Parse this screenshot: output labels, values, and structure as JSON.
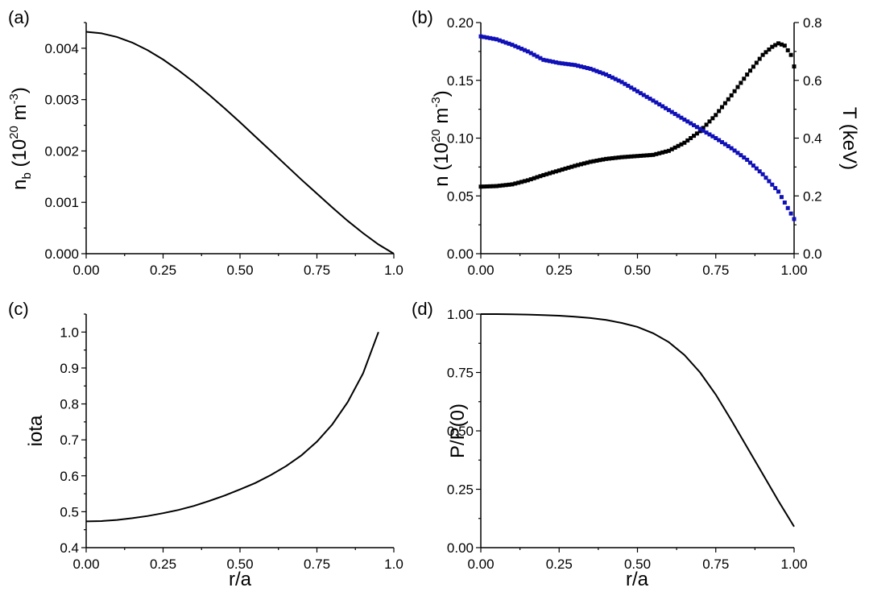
{
  "chart_data": [
    {
      "panel": "(a)",
      "type": "line",
      "xlabel": "",
      "ylabel": "n_b (10^20 m^-3)",
      "ylabel_parts": {
        "base": "n",
        "sub": "b",
        "open": " (10",
        "sup1": "20",
        "mid": " m",
        "sup2": "-3",
        "close": ")"
      },
      "xlim": [
        0,
        1.0
      ],
      "ylim": [
        0,
        0.0045
      ],
      "xticks": [
        "0.00",
        "0.25",
        "0.50",
        "0.75",
        "1.0"
      ],
      "yticks": [
        "0.000",
        "0.001",
        "0.002",
        "0.003",
        "0.004"
      ],
      "series": [
        {
          "color": "#000000",
          "x": [
            0,
            0.05,
            0.1,
            0.15,
            0.2,
            0.25,
            0.3,
            0.35,
            0.4,
            0.45,
            0.5,
            0.55,
            0.6,
            0.65,
            0.7,
            0.75,
            0.8,
            0.85,
            0.9,
            0.95,
            1.0
          ],
          "y": [
            0.00432,
            0.00429,
            0.00422,
            0.00411,
            0.00396,
            0.00378,
            0.00357,
            0.00334,
            0.00309,
            0.00283,
            0.00256,
            0.00228,
            0.002,
            0.00172,
            0.00144,
            0.00117,
            0.0009,
            0.00064,
            0.0004,
            0.00018,
            0.0
          ]
        }
      ]
    },
    {
      "panel": "(b)",
      "type": "scatter",
      "xlabel": "",
      "ylabel": "n (10^20 m^-3)",
      "ylabel_parts": {
        "base": "n (10",
        "sup1": "20",
        "mid": " m",
        "sup2": "-3",
        "close": ")"
      },
      "y2label": "T (keV)",
      "xlim": [
        0,
        1.0
      ],
      "ylim": [
        0,
        0.2
      ],
      "y2lim": [
        0,
        0.8
      ],
      "xticks": [
        "0.00",
        "0.25",
        "0.50",
        "0.75",
        "1.00"
      ],
      "yticks": [
        "0.00",
        "0.05",
        "0.10",
        "0.15",
        "0.20"
      ],
      "y2ticks": [
        "0.0",
        "0.2",
        "0.4",
        "0.6",
        "0.8"
      ],
      "series": [
        {
          "name": "n",
          "axis": "left",
          "color": "#000000",
          "x": [
            0,
            0.05,
            0.1,
            0.15,
            0.2,
            0.25,
            0.3,
            0.35,
            0.4,
            0.45,
            0.5,
            0.55,
            0.6,
            0.65,
            0.7,
            0.75,
            0.8,
            0.85,
            0.9,
            0.93,
            0.95,
            0.97,
            0.99,
            1.0
          ],
          "y": [
            0.058,
            0.0585,
            0.06,
            0.0635,
            0.068,
            0.072,
            0.076,
            0.0795,
            0.082,
            0.0835,
            0.0845,
            0.0855,
            0.089,
            0.096,
            0.106,
            0.12,
            0.137,
            0.155,
            0.172,
            0.179,
            0.182,
            0.18,
            0.172,
            0.162
          ]
        },
        {
          "name": "T",
          "axis": "right",
          "color": "#1010b8",
          "x": [
            0,
            0.05,
            0.1,
            0.15,
            0.2,
            0.25,
            0.3,
            0.35,
            0.4,
            0.45,
            0.5,
            0.55,
            0.6,
            0.65,
            0.7,
            0.75,
            0.8,
            0.85,
            0.9,
            0.95,
            1.0
          ],
          "y": [
            0.752,
            0.742,
            0.723,
            0.7,
            0.671,
            0.66,
            0.653,
            0.64,
            0.62,
            0.594,
            0.562,
            0.53,
            0.497,
            0.464,
            0.432,
            0.4,
            0.365,
            0.325,
            0.275,
            0.215,
            0.12
          ]
        }
      ]
    },
    {
      "panel": "(c)",
      "type": "line",
      "xlabel": "r/a",
      "ylabel": "iota",
      "xlim": [
        0,
        1.0
      ],
      "ylim": [
        0.4,
        1.05
      ],
      "xticks": [
        "0.00",
        "0.25",
        "0.50",
        "0.75",
        "1.0"
      ],
      "yticks": [
        "0.4",
        "0.5",
        "0.6",
        "0.7",
        "0.8",
        "0.9",
        "1.0"
      ],
      "series": [
        {
          "color": "#000000",
          "x": [
            0,
            0.05,
            0.1,
            0.15,
            0.2,
            0.25,
            0.3,
            0.35,
            0.4,
            0.45,
            0.5,
            0.55,
            0.6,
            0.65,
            0.7,
            0.75,
            0.8,
            0.85,
            0.9,
            0.95
          ],
          "y": [
            0.473,
            0.474,
            0.477,
            0.482,
            0.488,
            0.496,
            0.505,
            0.516,
            0.53,
            0.545,
            0.562,
            0.58,
            0.602,
            0.627,
            0.657,
            0.695,
            0.743,
            0.805,
            0.885,
            1.0
          ]
        }
      ]
    },
    {
      "panel": "(d)",
      "type": "line",
      "xlabel": "r/a",
      "ylabel": "P/P(0)",
      "xlim": [
        0,
        1.0
      ],
      "ylim": [
        0,
        1.0
      ],
      "xticks": [
        "0.00",
        "0.25",
        "0.50",
        "0.75",
        "1.00"
      ],
      "yticks": [
        "0.00",
        "0.25",
        "0.50",
        "0.75",
        "1.00"
      ],
      "series": [
        {
          "color": "#000000",
          "x": [
            0,
            0.05,
            0.1,
            0.15,
            0.2,
            0.25,
            0.3,
            0.35,
            0.4,
            0.45,
            0.5,
            0.55,
            0.6,
            0.65,
            0.7,
            0.75,
            0.8,
            0.85,
            0.9,
            0.95,
            1.0
          ],
          "y": [
            1.0,
            1.0,
            0.999,
            0.998,
            0.996,
            0.993,
            0.989,
            0.983,
            0.975,
            0.962,
            0.945,
            0.918,
            0.88,
            0.825,
            0.75,
            0.655,
            0.545,
            0.43,
            0.315,
            0.2,
            0.09
          ]
        }
      ]
    }
  ]
}
